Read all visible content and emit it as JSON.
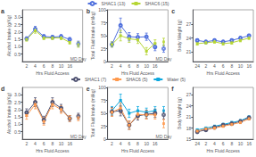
{
  "chart_data": [
    {
      "type": "line",
      "title": "a",
      "xlabel": "Hrs Fluid Access",
      "ylabel": "Alcohol Intake (g/Kg)",
      "categories": [
        "2",
        "4",
        "6",
        "8",
        "10",
        "16"
      ],
      "series": [
        {
          "name": "SHAC1 (13)",
          "marker": "open_circle",
          "values": [
            1.55,
            2.2,
            1.7,
            1.65,
            1.7,
            1.5
          ],
          "errors": [
            0.12,
            0.18,
            0.12,
            0.12,
            0.12,
            0.12
          ],
          "md_value": 1.2,
          "md_error": 0.18
        },
        {
          "name": "SHAC6 (15)",
          "marker": "square",
          "values": [
            1.5,
            2.1,
            1.6,
            1.6,
            1.6,
            1.3
          ],
          "errors": [
            0.12,
            0.18,
            0.12,
            0.12,
            0.12,
            0.12
          ],
          "md_value": 1.15,
          "md_error": 0.18
        }
      ],
      "annotation": "MD Day",
      "ylim": [
        0.0,
        3.5
      ],
      "yticks": [
        0.5,
        {
          "value": 1.0,
          "label": "1.0"
        },
        1.5,
        {
          "value": 2.0,
          "label": "2.0"
        },
        2.5,
        {
          "value": 3.0,
          "label": "3.0"
        }
      ],
      "grid": false
    },
    {
      "type": "line",
      "title": "b",
      "xlabel": "Hrs Fluid Access",
      "ylabel": "Total Fluid Intake (ml/kg)",
      "categories": [
        "2",
        "4",
        "6",
        "8",
        "10",
        "16"
      ],
      "series": [
        {
          "name": "SHAC1 (13)",
          "marker": "open_circle",
          "values": [
            33,
            70,
            48,
            47,
            48,
            28
          ],
          "errors": [
            5,
            14,
            8,
            7,
            7,
            7
          ],
          "md_value": 25,
          "md_error": 7
        },
        {
          "name": "SHAC6 (15)",
          "marker": "square",
          "values": [
            33,
            50,
            44,
            42,
            20,
            35
          ],
          "errors": [
            5,
            10,
            7,
            7,
            7,
            7
          ],
          "md_value": 38,
          "md_error": 7
        }
      ],
      "annotation": "MD Day",
      "ylim": [
        0,
        100
      ],
      "yticks": [
        0,
        25,
        50,
        75,
        100
      ],
      "grid": false
    },
    {
      "type": "line",
      "title": "c",
      "xlabel": "Hrs Fluid Access",
      "ylabel": "Body Weight (g)",
      "categories": [
        "24",
        "2",
        "4",
        "6",
        "8",
        "10",
        "16"
      ],
      "series": [
        {
          "name": "SHAC1 (13)",
          "marker": "open_circle",
          "values": [
            23.5,
            23.2,
            23.5,
            23.2,
            23.5,
            24.0,
            24.5
          ],
          "errors": [
            0.3,
            0.3,
            0.3,
            0.3,
            0.3,
            0.3,
            0.3
          ]
        },
        {
          "name": "SHAC6 (15)",
          "marker": "square",
          "values": [
            22.8,
            23.0,
            23.2,
            22.8,
            23.0,
            23.5,
            24.0
          ],
          "errors": [
            0.3,
            0.3,
            0.3,
            0.3,
            0.3,
            0.3,
            0.3
          ]
        }
      ],
      "ylim": [
        19,
        30
      ],
      "yticks": [
        21,
        24,
        27
      ],
      "grid": false
    },
    {
      "type": "line",
      "title": "d",
      "xlabel": "Hrs Fluid Access",
      "ylabel": "Alcohol Intake (g/Kg)",
      "categories": [
        "2",
        "4",
        "6",
        "8",
        "10",
        "16"
      ],
      "series": [
        {
          "name": "SHAC1 (7)",
          "marker": "open_circle",
          "values": [
            1.8,
            2.5,
            1.3,
            2.5,
            2.1,
            1.4
          ],
          "errors": [
            0.25,
            0.3,
            0.25,
            0.3,
            0.25,
            0.2
          ],
          "md_value": 1.55,
          "md_error": 0.2
        },
        {
          "name": "SHAC6 (5)",
          "marker": "square",
          "values": [
            1.6,
            2.35,
            1.2,
            2.35,
            2.0,
            1.4
          ],
          "errors": [
            0.25,
            0.3,
            0.25,
            0.3,
            0.25,
            0.2
          ],
          "md_value": 1.45,
          "md_error": 0.2
        }
      ],
      "annotation": "MD Day",
      "ylim": [
        0.0,
        3.5
      ],
      "yticks": [
        0.5,
        {
          "value": 1.0,
          "label": "1.0"
        },
        1.5,
        {
          "value": 2.0,
          "label": "2.0"
        },
        2.5,
        {
          "value": 3.0,
          "label": "3.0"
        }
      ],
      "grid": false
    },
    {
      "type": "line",
      "title": "e",
      "xlabel": "Hrs Fluid Access",
      "ylabel": "Total Fluid Intake (ml/kg)",
      "categories": [
        "2",
        "4",
        "6",
        "8",
        "10",
        "16"
      ],
      "series": [
        {
          "name": "Water (5)",
          "marker": "square",
          "values": [
            55,
            75,
            50,
            55,
            52,
            55
          ],
          "errors": [
            8,
            12,
            8,
            8,
            8,
            8
          ],
          "md_value": 55,
          "md_error": 8
        },
        {
          "name": "SHAC1 (7)",
          "marker": "open_circle",
          "values": [
            53,
            55,
            27,
            45,
            48,
            50
          ],
          "errors": [
            8,
            10,
            8,
            8,
            8,
            8
          ],
          "md_value": 47,
          "md_error": 8
        },
        {
          "name": "SHAC6 (5)",
          "marker": "square",
          "values": [
            52,
            60,
            27,
            48,
            47,
            47
          ],
          "errors": [
            8,
            10,
            8,
            8,
            8,
            8
          ],
          "md_value": 30,
          "md_error": 8
        }
      ],
      "annotation": "MD Day",
      "ylim": [
        0,
        100
      ],
      "yticks": [
        0,
        25,
        50,
        75,
        100
      ],
      "grid": false
    },
    {
      "type": "line",
      "title": "f",
      "xlabel": "Hrs Fluid Access",
      "ylabel": "Body Weight (g)",
      "categories": [
        "24",
        "2",
        "4",
        "6",
        "8",
        "10",
        "16"
      ],
      "series": [
        {
          "name": "Water (5)",
          "marker": "square",
          "values": [
            17.5,
            18.0,
            18.5,
            19.0,
            19.5,
            20.0,
            21.0
          ],
          "errors": [
            0.3,
            0.3,
            0.3,
            0.3,
            0.3,
            0.3,
            0.3
          ]
        },
        {
          "name": "SHAC1 (7)",
          "marker": "open_circle",
          "values": [
            17.0,
            17.5,
            18.2,
            18.8,
            19.2,
            19.8,
            20.8
          ],
          "errors": [
            0.3,
            0.3,
            0.3,
            0.3,
            0.3,
            0.3,
            0.3
          ]
        },
        {
          "name": "SHAC6 (5)",
          "marker": "square",
          "values": [
            17.2,
            17.8,
            18.0,
            18.5,
            19.0,
            19.5,
            20.5
          ],
          "errors": [
            0.3,
            0.3,
            0.3,
            0.3,
            0.3,
            0.3,
            0.3
          ]
        }
      ],
      "ylim": [
        15,
        29
      ],
      "yticks": [
        15,
        18,
        21,
        24,
        27
      ],
      "grid": false
    }
  ]
}
